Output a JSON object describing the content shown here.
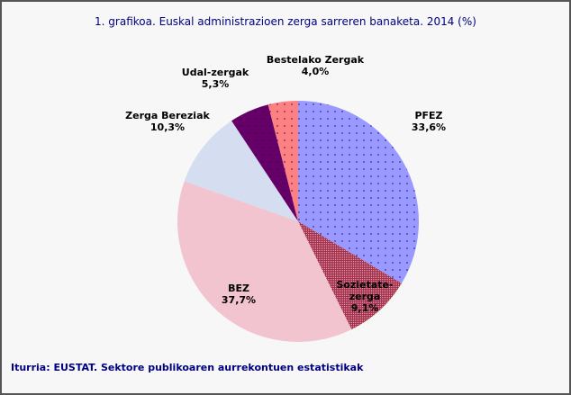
{
  "chart_data": {
    "type": "pie",
    "title": "1. grafikoa. Euskal administrazioen zerga sarreren banaketa. 2014 (%)",
    "start": "top, clockwise",
    "slices": [
      {
        "label": [
          "PFEZ"
        ],
        "value": 33.6,
        "value_label": "33,6%",
        "color": "#9999ff",
        "pattern": "dots"
      },
      {
        "label": [
          "Sozietate-",
          "zerga"
        ],
        "value": 9.1,
        "value_label": "9,1%",
        "color": "#993366",
        "pattern": "fine-dots"
      },
      {
        "label": [
          "BEZ"
        ],
        "value": 37.7,
        "value_label": "37,7%",
        "color": "#f2c4cf",
        "pattern": "none"
      },
      {
        "label": [
          "Zerga Bereziak"
        ],
        "value": 10.3,
        "value_label": "10,3%",
        "color": "#d4def0",
        "pattern": "none"
      },
      {
        "label": [
          "Udal-zergak"
        ],
        "value": 5.3,
        "value_label": "5,3%",
        "color": "#660066",
        "pattern": "dots"
      },
      {
        "label": [
          "Bestelako Zergak"
        ],
        "value": 4.0,
        "value_label": "4,0%",
        "color": "#ff8080",
        "pattern": "dots"
      }
    ],
    "legend": "none"
  },
  "source": "Iturria: EUSTAT. Sektore publikoaren aurrekontuen estatistikak"
}
